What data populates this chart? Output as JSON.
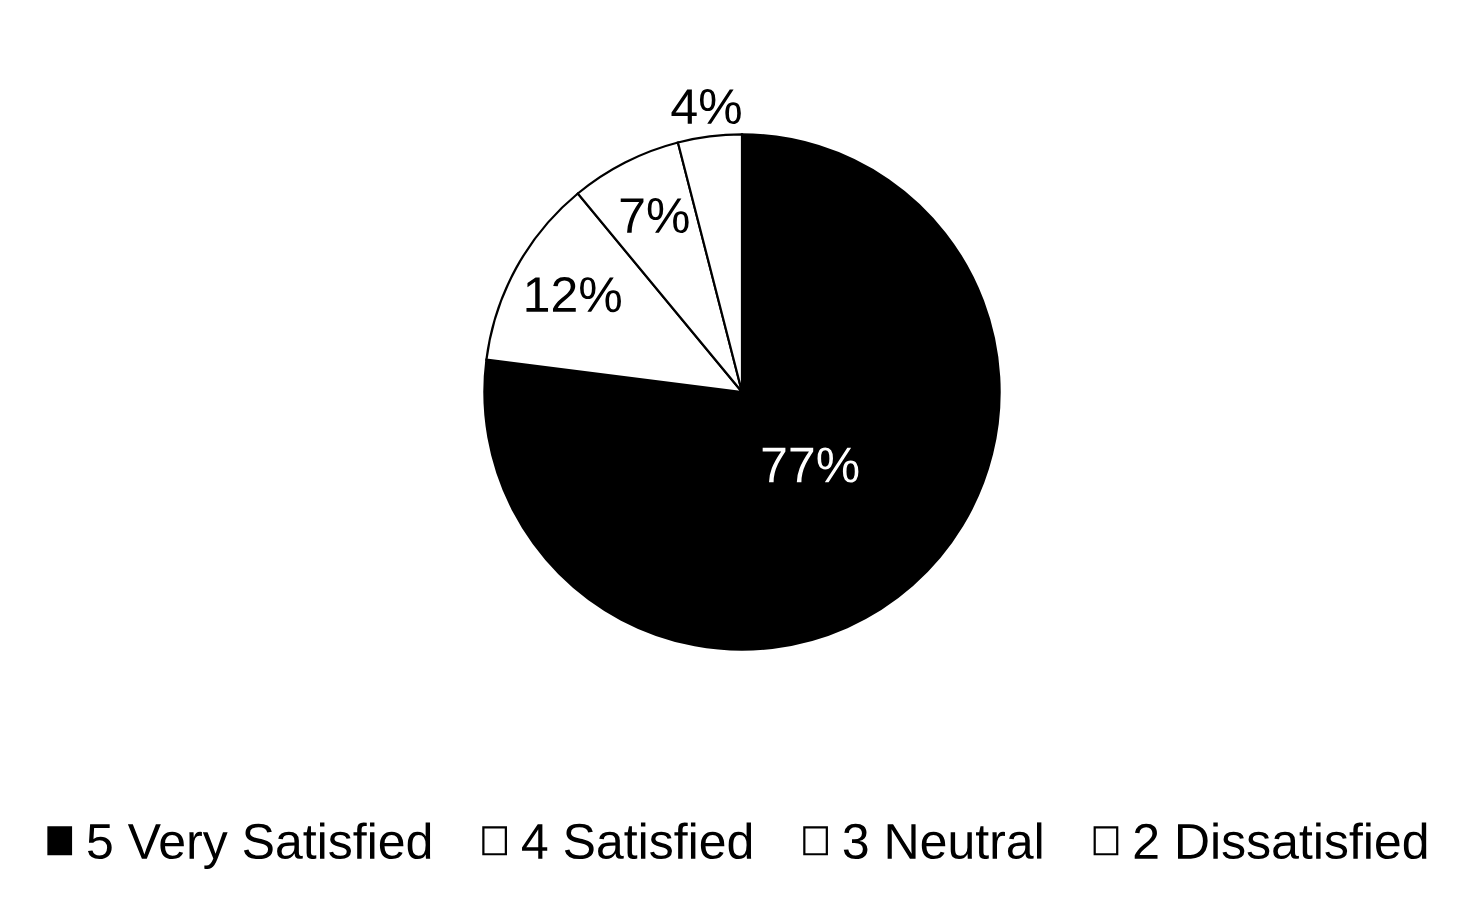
{
  "chart_data": {
    "type": "pie",
    "categories": [
      "5 Very Satisfied",
      "4 Satisfied",
      "3 Neutral",
      "2 Dissatisfied"
    ],
    "values": [
      77,
      12,
      7,
      4
    ],
    "colors": [
      "#000000",
      "#ffffff",
      "#ffffff",
      "#ffffff"
    ],
    "value_labels": [
      "77%",
      "12%",
      "7%",
      "4%"
    ],
    "legend": "bottom"
  }
}
